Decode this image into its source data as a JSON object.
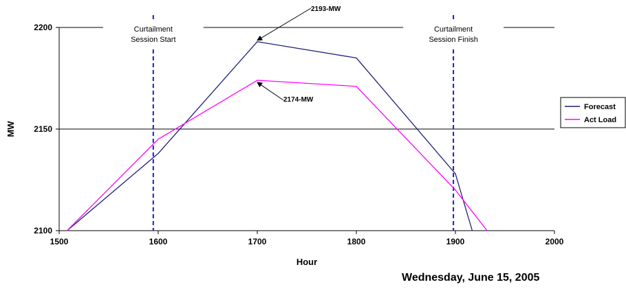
{
  "chart_data": {
    "type": "line",
    "xlabel": "Hour",
    "ylabel": "MW",
    "xlim": [
      1500,
      2000
    ],
    "ylim": [
      2100,
      2200
    ],
    "xticks": [
      "1500",
      "1600",
      "1700",
      "1800",
      "1900",
      "2000"
    ],
    "yticks": [
      "2100",
      "2150",
      "2200"
    ],
    "grid": "horizontal",
    "legend_position": "right",
    "series": [
      {
        "name": "Forecast",
        "color": "#1f1f7a",
        "points": [
          [
            1508,
            2100
          ],
          [
            1600,
            2138
          ],
          [
            1700,
            2193
          ],
          [
            1800,
            2185
          ],
          [
            1900,
            2128
          ],
          [
            1917,
            2100
          ]
        ]
      },
      {
        "name": "Act Load",
        "color": "#ff00ff",
        "points": [
          [
            1508,
            2100
          ],
          [
            1600,
            2145
          ],
          [
            1700,
            2174
          ],
          [
            1800,
            2171
          ],
          [
            1900,
            2120
          ],
          [
            1932,
            2100
          ]
        ]
      }
    ],
    "vertical_markers": [
      {
        "x": 1595,
        "color": "#1a1acc",
        "label_lines": [
          "Curtailment",
          "Session Start"
        ]
      },
      {
        "x": 1898,
        "color": "#1a1acc",
        "label_lines": [
          "Curtailment",
          "Session Finish"
        ]
      }
    ],
    "callouts": [
      {
        "label": "2193-MW",
        "x": 1700,
        "y": 2193
      },
      {
        "label": "2174-MW",
        "x": 1700,
        "y": 2174
      }
    ]
  },
  "footer": {
    "date": "Wednesday, June 15, 2005"
  }
}
